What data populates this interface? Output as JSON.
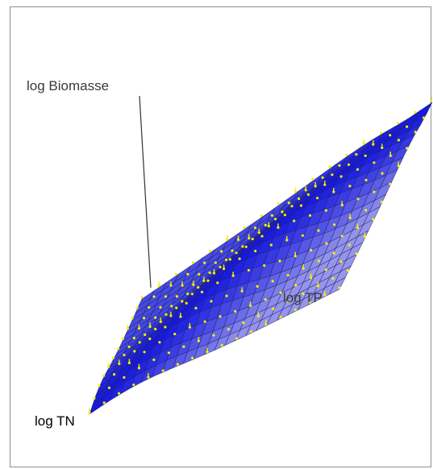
{
  "chart_data": {
    "type": "surface-3d",
    "title": "",
    "axes": {
      "x": "log TN",
      "y": "log TP",
      "z": "log Biomasse"
    },
    "surface": {
      "fill_color": "#3a3fe0",
      "mesh_color": "#1d1f6e",
      "point_color": "#f4f000",
      "observation_points": true,
      "tick_labels": "none"
    },
    "grid": false,
    "legend": "none"
  }
}
